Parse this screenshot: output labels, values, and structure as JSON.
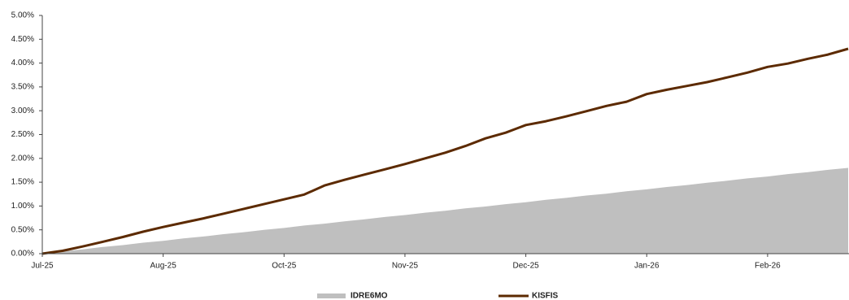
{
  "chart_data": {
    "type": "line",
    "categories": [
      "Jul-25",
      null,
      null,
      null,
      null,
      null,
      "Aug-25",
      null,
      null,
      null,
      null,
      null,
      "Oct-25",
      null,
      null,
      null,
      null,
      null,
      "Nov-25",
      null,
      null,
      null,
      null,
      null,
      "Dec-25",
      null,
      null,
      null,
      null,
      null,
      "Jan-26",
      null,
      null,
      null,
      null,
      null,
      "Feb-26",
      null,
      null,
      null,
      null
    ],
    "series": [
      {
        "name": "IDRE6MO",
        "type": "area",
        "color": "#bfbfbf",
        "values": [
          0,
          0.05,
          0.09,
          0.14,
          0.18,
          0.23,
          0.27,
          0.32,
          0.36,
          0.41,
          0.45,
          0.5,
          0.54,
          0.59,
          0.63,
          0.68,
          0.72,
          0.77,
          0.81,
          0.86,
          0.9,
          0.95,
          0.99,
          1.04,
          1.08,
          1.13,
          1.17,
          1.22,
          1.26,
          1.31,
          1.35,
          1.4,
          1.44,
          1.49,
          1.53,
          1.58,
          1.62,
          1.67,
          1.71,
          1.76,
          1.8
        ]
      },
      {
        "name": "KISFIS",
        "type": "line",
        "color": "#5c2a00",
        "values": [
          0,
          0.06,
          0.15,
          0.25,
          0.35,
          0.46,
          0.56,
          0.65,
          0.74,
          0.84,
          0.94,
          1.04,
          1.14,
          1.24,
          1.43,
          1.55,
          1.66,
          1.77,
          1.88,
          2.0,
          2.12,
          2.26,
          2.42,
          2.54,
          2.7,
          2.78,
          2.88,
          2.99,
          3.1,
          3.19,
          3.35,
          3.44,
          3.52,
          3.6,
          3.7,
          3.8,
          3.92,
          3.99,
          4.09,
          4.18,
          4.3
        ]
      }
    ],
    "ylim": [
      0,
      5
    ],
    "yticks": [
      {
        "value": 0,
        "label": "0.00%"
      },
      {
        "value": 0.5,
        "label": "0.50%"
      },
      {
        "value": 1,
        "label": "1.00%"
      },
      {
        "value": 1.5,
        "label": "1.50%"
      },
      {
        "value": 2,
        "label": "2.00%"
      },
      {
        "value": 2.5,
        "label": "2.50%"
      },
      {
        "value": 3,
        "label": "3.00%"
      },
      {
        "value": 3.5,
        "label": "3.50%"
      },
      {
        "value": 4,
        "label": "4.00%"
      },
      {
        "value": 4.5,
        "label": "4.50%"
      },
      {
        "value": 5,
        "label": "5.00%"
      }
    ],
    "grid": false,
    "legend": "bottom"
  }
}
